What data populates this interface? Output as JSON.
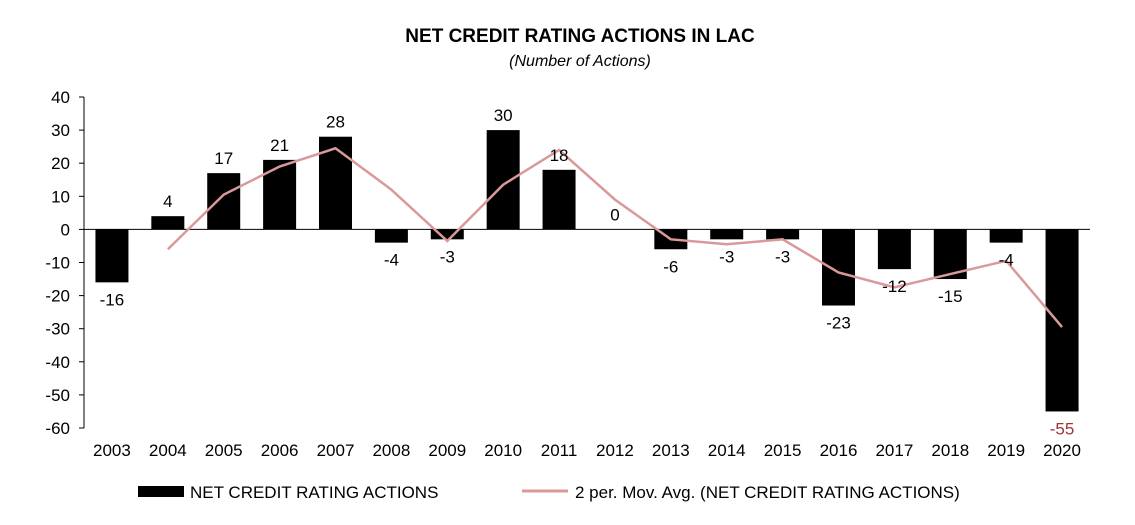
{
  "chart_data": {
    "type": "bar",
    "title": "NET CREDIT RATING ACTIONS IN LAC",
    "subtitle": "(Number of Actions)",
    "categories": [
      "2003",
      "2004",
      "2005",
      "2006",
      "2007",
      "2008",
      "2009",
      "2010",
      "2011",
      "2012",
      "2013",
      "2014",
      "2015",
      "2016",
      "2017",
      "2018",
      "2019",
      "2020"
    ],
    "series": [
      {
        "name": "NET CREDIT RATING ACTIONS",
        "type": "bar",
        "color": "#000000",
        "values": [
          -16,
          4,
          17,
          21,
          28,
          -4,
          -3,
          30,
          18,
          0,
          -6,
          -3,
          -3,
          -23,
          -12,
          -15,
          -4,
          -55
        ]
      },
      {
        "name": "2 per. Mov. Avg. (NET CREDIT RATING ACTIONS)",
        "type": "line",
        "color": "#d9999a",
        "values": [
          null,
          -6,
          10.5,
          19,
          24.5,
          12,
          -3.5,
          13.5,
          24,
          9,
          -3,
          -4.5,
          -3,
          -13,
          -17.5,
          -13.5,
          -9.5,
          -29.5
        ]
      }
    ],
    "data_labels": [
      "-16",
      "4",
      "17",
      "21",
      "28",
      "-4",
      "-3",
      "30",
      "18",
      "0",
      "-6",
      "-3",
      "-3",
      "-23",
      "-12",
      "-15",
      "-4",
      "-55"
    ],
    "highlight_label_color": "#a33434",
    "yticks": [
      "40",
      "30",
      "20",
      "10",
      "0",
      "-10",
      "-20",
      "-30",
      "-40",
      "-50",
      "-60"
    ],
    "ylim": [
      -60,
      40
    ],
    "grid": false,
    "legend_placement": "bottom"
  }
}
